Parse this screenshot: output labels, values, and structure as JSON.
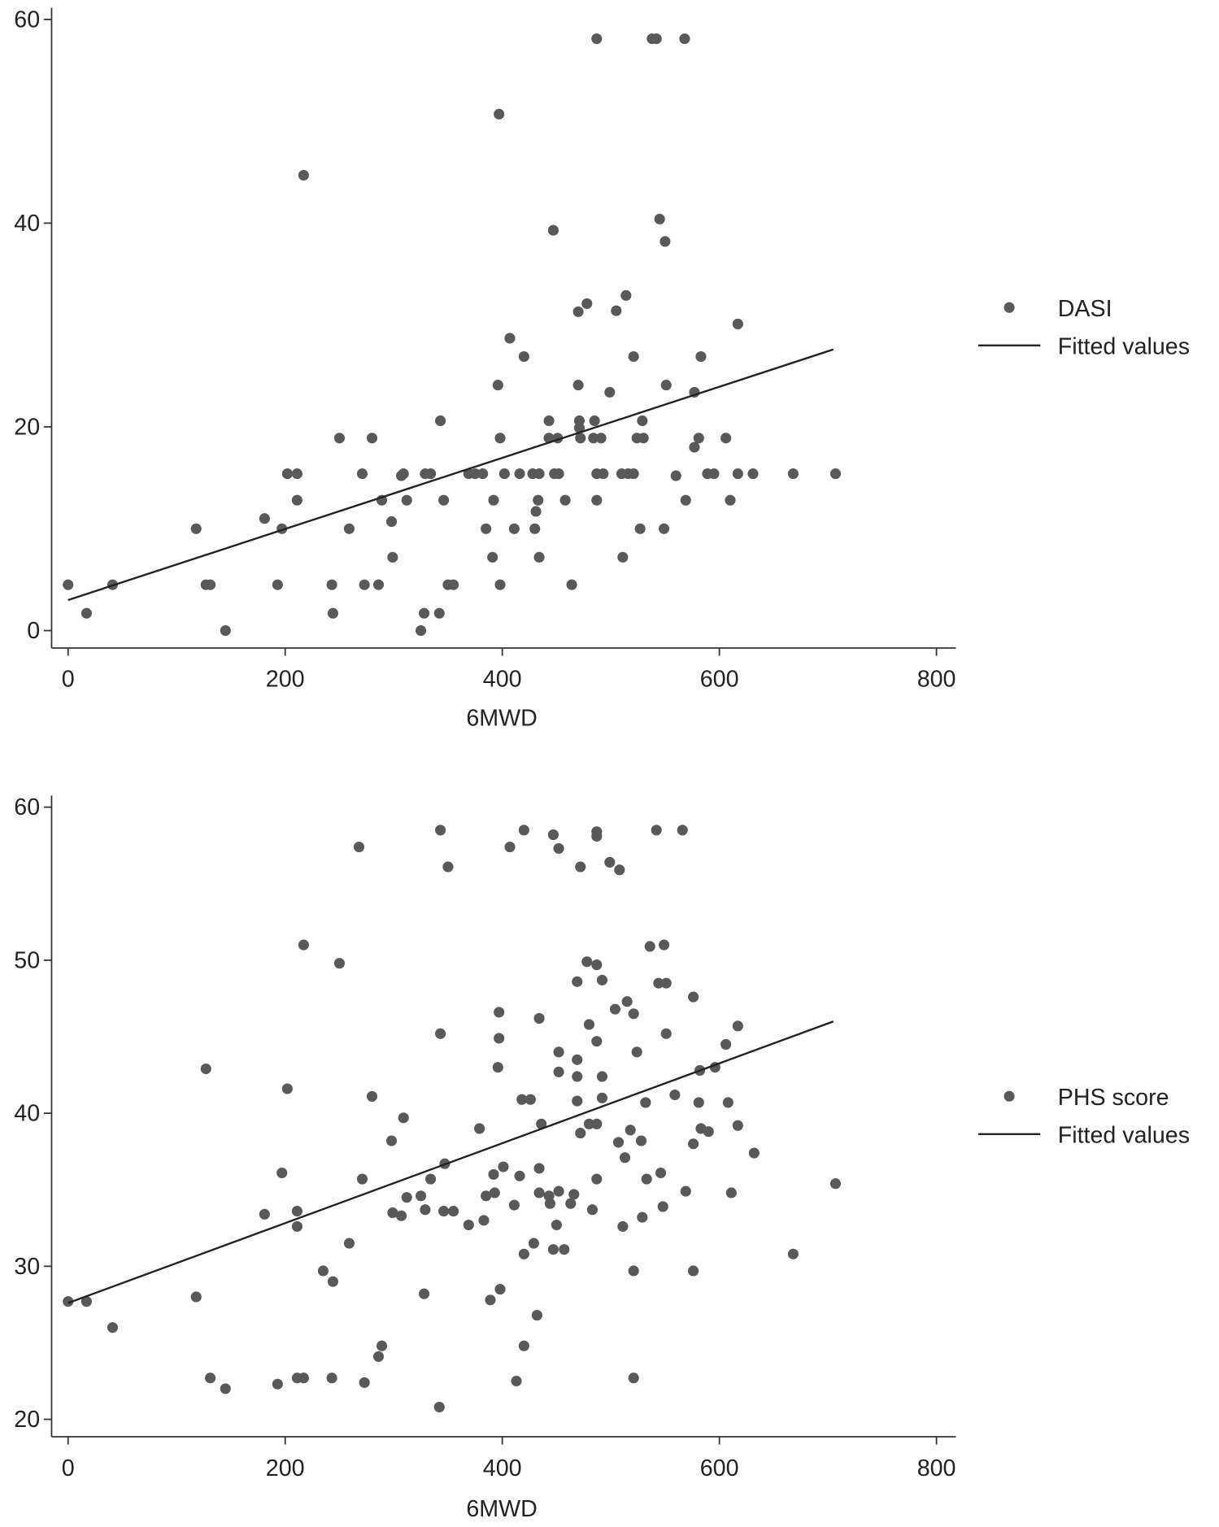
{
  "chart_data": [
    {
      "type": "scatter",
      "xlabel": "6MWD",
      "ylabel": "",
      "xlim": [
        0,
        800
      ],
      "ylim": [
        0,
        60
      ],
      "xticks": [
        0,
        200,
        400,
        600,
        800
      ],
      "yticks": [
        0,
        20,
        40,
        60
      ],
      "grid": false,
      "legend_placement": "right",
      "marker_color": "#595959",
      "line_color": "#222222",
      "series": [
        {
          "name": "DASI",
          "kind": "points",
          "x": [
            0,
            17,
            41,
            118,
            127,
            131,
            145,
            181,
            193,
            197,
            202,
            211,
            211,
            217,
            243,
            244,
            250,
            259,
            271,
            273,
            280,
            286,
            289,
            298,
            299,
            307,
            309,
            312,
            325,
            328,
            329,
            334,
            342,
            343,
            346,
            350,
            355,
            369,
            375,
            382,
            385,
            391,
            392,
            396,
            397,
            398,
            398,
            402,
            407,
            411,
            416,
            420,
            428,
            434,
            430,
            431,
            433,
            434,
            443,
            443,
            447,
            448,
            452,
            451,
            458,
            464,
            470,
            470,
            471,
            471,
            472,
            478,
            484,
            485,
            487,
            487,
            487,
            491,
            493,
            499,
            505,
            510,
            516,
            511,
            514,
            521,
            521,
            524,
            530,
            527,
            529,
            538,
            542,
            545,
            549,
            550,
            551,
            560,
            568,
            569,
            577,
            577,
            581,
            583,
            589,
            595,
            606,
            610,
            617,
            617,
            631,
            668,
            707
          ],
          "y": [
            4.5,
            1.7,
            4.5,
            10,
            4.5,
            4.5,
            0,
            11,
            4.5,
            10,
            15.4,
            15.4,
            12.8,
            44.7,
            4.5,
            1.7,
            18.9,
            10,
            15.4,
            4.5,
            18.9,
            4.5,
            12.8,
            10.7,
            7.2,
            15.2,
            15.4,
            12.8,
            0,
            1.7,
            15.4,
            15.4,
            1.7,
            20.6,
            12.8,
            4.5,
            4.5,
            15.4,
            15.4,
            15.4,
            10,
            7.2,
            12.8,
            24.1,
            50.7,
            18.9,
            4.5,
            15.4,
            28.7,
            10,
            15.4,
            26.9,
            15.4,
            15.4,
            10,
            11.7,
            12.8,
            7.2,
            20.6,
            18.9,
            39.3,
            15.4,
            15.4,
            18.9,
            12.8,
            4.5,
            31.3,
            24.1,
            19.9,
            20.6,
            18.9,
            32.1,
            18.9,
            20.6,
            58.1,
            15.4,
            12.8,
            18.9,
            15.4,
            23.4,
            31.4,
            15.4,
            15.4,
            7.2,
            32.9,
            15.4,
            26.9,
            18.9,
            18.9,
            10,
            20.6,
            58.1,
            58.1,
            40.4,
            10,
            38.2,
            24.1,
            15.2,
            58.1,
            12.8,
            18,
            23.4,
            18.9,
            26.9,
            15.4,
            15.4,
            18.9,
            12.8,
            30.1,
            15.4,
            15.4,
            15.4,
            15.4
          ]
        },
        {
          "name": "Fitted values",
          "kind": "line",
          "x": [
            0,
            705
          ],
          "y": [
            3,
            27.6
          ]
        }
      ]
    },
    {
      "type": "scatter",
      "xlabel": "6MWD",
      "ylabel": "",
      "xlim": [
        0,
        800
      ],
      "ylim": [
        20,
        60
      ],
      "xticks": [
        0,
        200,
        400,
        600,
        800
      ],
      "yticks": [
        20,
        30,
        40,
        50,
        60
      ],
      "grid": false,
      "legend_placement": "right",
      "marker_color": "#595959",
      "line_color": "#222222",
      "series": [
        {
          "name": "PHS score",
          "kind": "points",
          "x": [
            0,
            17,
            41,
            118,
            127,
            131,
            145,
            181,
            193,
            197,
            202,
            211,
            211,
            211,
            217,
            217,
            235,
            243,
            244,
            250,
            259,
            268,
            271,
            273,
            280,
            286,
            289,
            298,
            299,
            307,
            309,
            312,
            325,
            328,
            329,
            334,
            342,
            343,
            343,
            346,
            347,
            350,
            355,
            369,
            379,
            383,
            385,
            389,
            392,
            393,
            396,
            397,
            397,
            398,
            401,
            407,
            411,
            413,
            416,
            418,
            420,
            420,
            420,
            426,
            429,
            432,
            434,
            434,
            434,
            436,
            443,
            444,
            447,
            447,
            450,
            452,
            452,
            452,
            452,
            457,
            463,
            466,
            469,
            469,
            469,
            469,
            472,
            472,
            478,
            480,
            480,
            483,
            487,
            487,
            487,
            487,
            487,
            487,
            492,
            492,
            492,
            499,
            504,
            507,
            508,
            511,
            513,
            515,
            518,
            521,
            521,
            521,
            524,
            528,
            529,
            532,
            533,
            536,
            542,
            544,
            546,
            548,
            549,
            551,
            551,
            559,
            566,
            569,
            576,
            576,
            576,
            581,
            582,
            583,
            590,
            596,
            606,
            608,
            611,
            617,
            617,
            632,
            668,
            707
          ],
          "y": [
            27.7,
            27.7,
            26,
            28,
            42.9,
            22.7,
            22,
            33.4,
            22.3,
            36.1,
            41.6,
            33.6,
            32.6,
            22.7,
            22.7,
            51,
            29.7,
            22.7,
            29,
            49.8,
            31.5,
            57.4,
            35.7,
            22.4,
            41.1,
            24.1,
            24.8,
            38.2,
            33.5,
            33.3,
            39.7,
            34.5,
            34.6,
            28.2,
            33.7,
            35.7,
            20.8,
            45.2,
            58.5,
            33.6,
            36.7,
            56.1,
            33.6,
            32.7,
            39,
            33,
            34.6,
            27.8,
            36,
            34.8,
            43,
            46.6,
            44.9,
            28.5,
            36.5,
            57.4,
            34,
            22.5,
            35.9,
            40.9,
            24.8,
            30.8,
            58.5,
            40.9,
            31.5,
            26.8,
            46.2,
            36.4,
            34.8,
            39.3,
            34.6,
            34.1,
            58.2,
            31.1,
            32.7,
            34.9,
            44,
            57.3,
            42.7,
            31.1,
            34.1,
            34.7,
            48.6,
            43.5,
            42.4,
            40.8,
            56.1,
            38.7,
            49.9,
            45.8,
            39.3,
            33.7,
            58.4,
            58.1,
            49.7,
            44.7,
            39.3,
            35.7,
            48.7,
            42.4,
            41,
            56.4,
            46.8,
            38.1,
            55.9,
            32.6,
            37.1,
            47.3,
            38.9,
            29.7,
            22.7,
            46.5,
            44,
            38.2,
            33.2,
            40.7,
            35.7,
            50.9,
            58.5,
            48.5,
            36.1,
            33.9,
            51,
            48.5,
            45.2,
            41.2,
            58.5,
            34.9,
            29.7,
            47.6,
            38,
            40.7,
            42.8,
            39,
            38.8,
            43,
            44.5,
            40.7,
            34.8,
            45.7,
            39.2,
            37.4,
            30.8,
            35.4
          ]
        },
        {
          "name": "Fitted values",
          "kind": "line",
          "x": [
            0,
            705
          ],
          "y": [
            27.6,
            46
          ]
        }
      ]
    }
  ]
}
